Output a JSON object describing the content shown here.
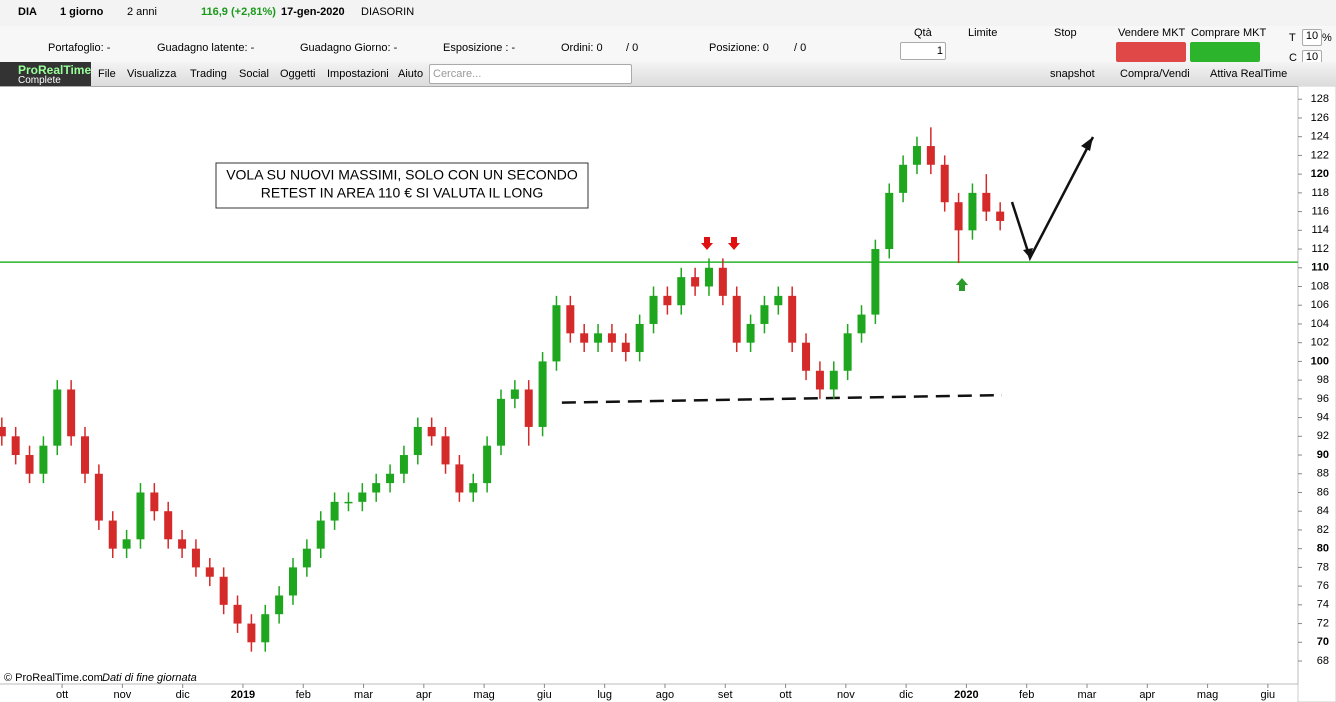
{
  "toolbar": {
    "symbol": "DIA",
    "period": "1 giorno",
    "range": "2 anni",
    "price": "116,9 (+2,81%)",
    "date": "17-gen-2020",
    "name": "DIASORIN",
    "portfolio": "Portafoglio: -",
    "latent": "Guadagno latente: -",
    "day_gain": "Guadagno Giorno: -",
    "exposure": "Esposizione : -",
    "orders": "Ordini: 0",
    "orders2": "/ 0",
    "position": "Posizione: 0",
    "position2": "/ 0",
    "qty_label": "Qtà",
    "qty": "1",
    "limit": "Limite",
    "stop": "Stop",
    "sell": "Vendere MKT",
    "buy": "Comprare MKT",
    "t": "T",
    "t_val": "10",
    "pct": "%",
    "c": "C",
    "c_val": "10"
  },
  "menu": {
    "logo": "ProRealTime",
    "logo_sub": "Complete",
    "items": [
      "File",
      "Visualizza",
      "Trading",
      "Social",
      "Oggetti",
      "Impostazioni",
      "Aiuto"
    ],
    "search": "Cercare...",
    "snapshot": "snapshot",
    "trade": "Compra/Vendi",
    "realtime": "Attiva RealTime"
  },
  "footer": {
    "copyright": "© ProRealTime.com",
    "note": "Dati di fine giornata"
  },
  "chart_data": {
    "type": "candlestick",
    "annotation": [
      "VOLA SU NUOVI MASSIMI, SOLO CON UN SECONDO",
      "RETEST IN  AREA 110 € SI VALUTA IL LONG"
    ],
    "up_color": "#1fa61f",
    "down_color": "#d42a2a",
    "support_level": 110.6,
    "support_color": "#2bb52b",
    "trendline": {
      "x": [
        8.29,
        15.59
      ],
      "y": [
        95.6,
        96.4
      ]
    },
    "xlim": [
      -1.03,
      20.5
    ],
    "ylim": [
      66.4,
      129.2
    ],
    "xticks": [
      {
        "value": 0,
        "label": "ott"
      },
      {
        "value": 1,
        "label": "nov"
      },
      {
        "value": 2,
        "label": "dic"
      },
      {
        "value": 3,
        "label": "2019"
      },
      {
        "value": 4,
        "label": "feb"
      },
      {
        "value": 5,
        "label": "mar"
      },
      {
        "value": 6,
        "label": "apr"
      },
      {
        "value": 7,
        "label": "mag"
      },
      {
        "value": 8,
        "label": "giu"
      },
      {
        "value": 9,
        "label": "lug"
      },
      {
        "value": 10,
        "label": "ago"
      },
      {
        "value": 11,
        "label": "set"
      },
      {
        "value": 12,
        "label": "ott"
      },
      {
        "value": 13,
        "label": "nov"
      },
      {
        "value": 14,
        "label": "dic"
      },
      {
        "value": 15,
        "label": "2020"
      },
      {
        "value": 16,
        "label": "feb"
      },
      {
        "value": 17,
        "label": "mar"
      },
      {
        "value": 18,
        "label": "apr"
      },
      {
        "value": 19,
        "label": "mag"
      },
      {
        "value": 20,
        "label": "giu"
      }
    ],
    "yticks": [
      68,
      70,
      72,
      74,
      76,
      78,
      80,
      82,
      84,
      86,
      88,
      90,
      92,
      94,
      96,
      98,
      100,
      102,
      104,
      106,
      108,
      110,
      112,
      114,
      116,
      118,
      120,
      122,
      124,
      126,
      128
    ],
    "x": [
      -1,
      -0.77,
      -0.54,
      -0.31,
      -0.08,
      0.15,
      0.38,
      0.61,
      0.84,
      1.07,
      1.3,
      1.53,
      1.76,
      1.99,
      2.22,
      2.45,
      2.68,
      2.91,
      3.14,
      3.37,
      3.6,
      3.83,
      4.06,
      4.29,
      4.52,
      4.75,
      4.98,
      5.21,
      5.44,
      5.67,
      5.9,
      6.13,
      6.36,
      6.59,
      6.82,
      7.05,
      7.28,
      7.51,
      7.74,
      7.97,
      8.2,
      8.43,
      8.66,
      8.89,
      9.12,
      9.35,
      9.58,
      9.81,
      10.04,
      10.27,
      10.5,
      10.73,
      10.96,
      11.19,
      11.42,
      11.65,
      11.88,
      12.11,
      12.34,
      12.57,
      12.8,
      13.03,
      13.26,
      13.49,
      13.72,
      13.95,
      14.18,
      14.41,
      14.64,
      14.87,
      15.1,
      15.33,
      15.56
    ],
    "open": [
      93,
      92,
      90,
      88,
      91,
      97,
      92,
      88,
      83,
      80,
      81,
      86,
      84,
      81,
      80,
      78,
      77,
      74,
      72,
      70,
      73,
      75,
      78,
      80,
      83,
      85,
      85,
      86,
      87,
      88,
      90,
      93,
      92,
      89,
      86,
      87,
      91,
      96,
      97,
      93,
      100,
      106,
      103,
      102,
      103,
      102,
      101,
      104,
      107,
      106,
      109,
      108,
      110,
      107,
      102,
      104,
      106,
      107,
      102,
      99,
      97,
      99,
      103,
      105,
      112,
      118,
      121,
      123,
      121,
      117,
      114,
      118,
      116
    ],
    "high": [
      94,
      93,
      91,
      92,
      98,
      98,
      93,
      89,
      84,
      82,
      87,
      87,
      85,
      82,
      81,
      79,
      78,
      75,
      73,
      74,
      76,
      79,
      81,
      84,
      86,
      86,
      87,
      88,
      89,
      91,
      94,
      94,
      93,
      90,
      88,
      92,
      97,
      98,
      98,
      101,
      107,
      107,
      104,
      104,
      104,
      103,
      105,
      108,
      108,
      110,
      110,
      111,
      111,
      108,
      105,
      107,
      108,
      108,
      103,
      100,
      100,
      104,
      106,
      113,
      119,
      122,
      124,
      125,
      122,
      118,
      119,
      120,
      117
    ],
    "low": [
      91,
      89,
      87,
      87,
      90,
      91,
      87,
      82,
      79,
      79,
      80,
      83,
      80,
      79,
      77,
      76,
      73,
      71,
      69,
      69,
      72,
      74,
      77,
      79,
      82,
      84,
      84,
      85,
      86,
      87,
      89,
      91,
      88,
      85,
      85,
      86,
      90,
      95,
      91,
      92,
      99,
      102,
      101,
      101,
      101,
      100,
      100,
      103,
      105,
      105,
      107,
      107,
      106,
      101,
      101,
      103,
      105,
      101,
      98,
      96,
      96,
      98,
      102,
      104,
      111,
      117,
      120,
      120,
      116,
      110.5,
      113,
      115,
      114
    ],
    "close": [
      92,
      90,
      88,
      91,
      97,
      92,
      88,
      83,
      80,
      81,
      86,
      84,
      81,
      80,
      78,
      77,
      74,
      72,
      70,
      73,
      75,
      78,
      80,
      83,
      85,
      85,
      86,
      87,
      88,
      90,
      93,
      92,
      89,
      86,
      87,
      91,
      96,
      97,
      93,
      100,
      106,
      103,
      102,
      103,
      102,
      101,
      104,
      107,
      106,
      109,
      108,
      110,
      107,
      102,
      104,
      106,
      107,
      102,
      99,
      97,
      99,
      103,
      105,
      112,
      118,
      121,
      123,
      121,
      117,
      114,
      118,
      116,
      115
    ]
  }
}
